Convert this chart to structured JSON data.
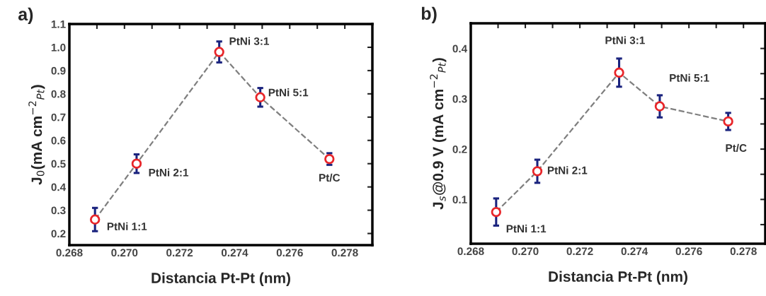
{
  "chart_data": [
    {
      "type": "scatter",
      "title": "a)",
      "xlabel": "Distancia Pt-Pt (nm)",
      "ylabel": "J$_{0}$(mA cm$^{−2}$$_{Pt}$)",
      "xlim": [
        0.268,
        0.279
      ],
      "ylim": [
        0.15,
        1.1
      ],
      "xticks": [
        {
          "value": 0.268,
          "label": "0.268"
        },
        {
          "value": 0.269,
          "label": null
        },
        {
          "value": 0.27,
          "label": "0.270"
        },
        {
          "value": 0.271,
          "label": null
        },
        {
          "value": 0.272,
          "label": "0.272"
        },
        {
          "value": 0.273,
          "label": null
        },
        {
          "value": 0.274,
          "label": "0.274"
        },
        {
          "value": 0.275,
          "label": null
        },
        {
          "value": 0.276,
          "label": "0.276"
        },
        {
          "value": 0.277,
          "label": null
        },
        {
          "value": 0.278,
          "label": "0.278"
        }
      ],
      "yticks": [
        0.2,
        0.3,
        0.4,
        0.5,
        0.6,
        0.7,
        0.8,
        0.9,
        {
          "value": 1.0,
          "label": "1.0"
        },
        1.1
      ],
      "grid": false,
      "legend": false,
      "series": [
        {
          "type": "line",
          "color": "#7f7f7f",
          "line_style": "dashed",
          "x": [
            0.26893,
            0.27044,
            0.27344,
            0.27493,
            0.27744
          ],
          "values": [
            0.26,
            0.5,
            0.98,
            0.785,
            0.52
          ]
        },
        {
          "color": "#e8262a",
          "marker": "circle",
          "x": [
            0.26893,
            0.27044,
            0.27344,
            0.27493,
            0.27744
          ],
          "values": [
            0.26,
            0.5,
            0.98,
            0.785,
            0.52
          ],
          "errors": [
            0.05,
            0.04,
            0.045,
            0.04,
            0.025
          ]
        }
      ],
      "annotations": [
        {
          "text": "PtNi 1:1",
          "x": 0.26893,
          "y": 0.26
        },
        {
          "text": "PtNi 2:1",
          "x": 0.27044,
          "y": 0.5
        },
        {
          "text": "PtNi 3:1",
          "x": 0.27344,
          "y": 0.98
        },
        {
          "text": "PtNi 5:1",
          "x": 0.27493,
          "y": 0.785
        },
        {
          "text": "Pt/C",
          "x": 0.27744,
          "y": 0.52
        }
      ]
    },
    {
      "type": "scatter",
      "title": "b)",
      "xlabel": "Distancia Pt-Pt (nm)",
      "ylabel": "J$_{s}$@0.9 V (mA cm$^{−2}$$_{Pt}$)",
      "xlim": [
        0.268,
        0.2788
      ],
      "ylim": [
        0.012,
        0.45
      ],
      "xticks": [
        {
          "value": 0.268,
          "label": "0.268"
        },
        {
          "value": 0.269,
          "label": null
        },
        {
          "value": 0.27,
          "label": "0.270"
        },
        {
          "value": 0.271,
          "label": null
        },
        {
          "value": 0.272,
          "label": "0.272"
        },
        {
          "value": 0.273,
          "label": null
        },
        {
          "value": 0.274,
          "label": "0.274"
        },
        {
          "value": 0.275,
          "label": null
        },
        {
          "value": 0.276,
          "label": "0.276"
        },
        {
          "value": 0.277,
          "label": null
        },
        {
          "value": 0.278,
          "label": "0.278"
        }
      ],
      "yticks": [
        {
          "value": 0.05,
          "label": null
        },
        0.1,
        {
          "value": 0.15,
          "label": null
        },
        0.2,
        {
          "value": 0.25,
          "label": null
        },
        0.3,
        {
          "value": 0.35,
          "label": null
        },
        0.4
      ],
      "grid": false,
      "legend": false,
      "series": [
        {
          "type": "line",
          "color": "#7f7f7f",
          "line_style": "dashed",
          "x": [
            0.26893,
            0.27044,
            0.27344,
            0.27493,
            0.27744
          ],
          "values": [
            0.075,
            0.156,
            0.352,
            0.285,
            0.255
          ]
        },
        {
          "color": "#e8262a",
          "marker": "circle",
          "x": [
            0.26893,
            0.27044,
            0.27344,
            0.27493,
            0.27744
          ],
          "values": [
            0.075,
            0.156,
            0.352,
            0.285,
            0.255
          ],
          "errors": [
            0.027,
            0.023,
            0.028,
            0.022,
            0.017
          ]
        }
      ],
      "annotations": [
        {
          "text": "PtNi 1:1",
          "x": 0.26893,
          "y": 0.075
        },
        {
          "text": "PtNi 2:1",
          "x": 0.27044,
          "y": 0.156
        },
        {
          "text": "PtNi 3:1",
          "x": 0.27344,
          "y": 0.352
        },
        {
          "text": "PtNi 5:1",
          "x": 0.27493,
          "y": 0.285
        },
        {
          "text": "Pt/C",
          "x": 0.27744,
          "y": 0.255
        }
      ]
    }
  ]
}
